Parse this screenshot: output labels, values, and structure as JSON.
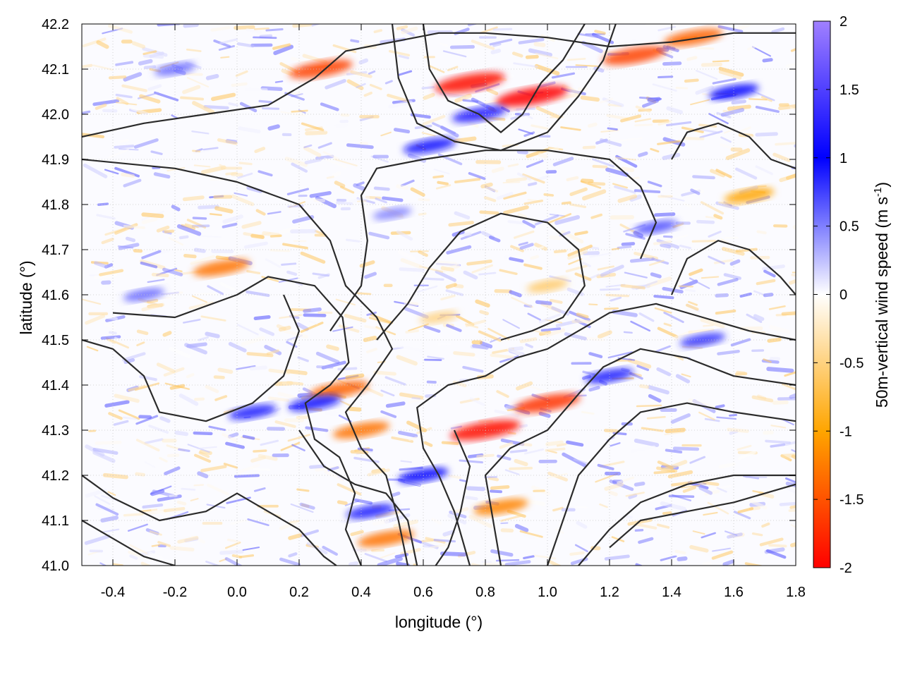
{
  "chart_data": {
    "type": "heatmap",
    "title": "",
    "xlabel": "longitude (°)",
    "ylabel": "latitude (°)",
    "colorbar_label": "50m-vertical wind speed (m s",
    "colorbar_label_sup": "-1",
    "colorbar_label_end": ")",
    "xlim": [
      -0.5,
      1.8
    ],
    "ylim": [
      41.0,
      42.2
    ],
    "clim": [
      -2,
      2
    ],
    "x_ticks": [
      -0.4,
      -0.2,
      0.0,
      0.2,
      0.4,
      0.6,
      0.8,
      1.0,
      1.2,
      1.4,
      1.6,
      1.8
    ],
    "x_tick_labels": [
      "-0.4",
      "-0.2",
      "0.0",
      "0.2",
      "0.4",
      "0.6",
      "0.8",
      "1.0",
      "1.2",
      "1.4",
      "1.6",
      "1.8"
    ],
    "y_ticks": [
      41.0,
      41.1,
      41.2,
      41.3,
      41.4,
      41.5,
      41.6,
      41.7,
      41.8,
      41.9,
      42.0,
      42.1,
      42.2
    ],
    "y_tick_labels": [
      "41.0",
      "41.1",
      "41.2",
      "41.3",
      "41.4",
      "41.5",
      "41.6",
      "41.7",
      "41.8",
      "41.9",
      "42.0",
      "42.1",
      "42.2"
    ],
    "colorbar_ticks": [
      -2,
      -1.5,
      -1,
      -0.5,
      0,
      0.5,
      1,
      1.5,
      2
    ],
    "colorbar_tick_labels": [
      "-2",
      "-1.5",
      "-1",
      "-0.5",
      "0",
      "0.5",
      "1",
      "1.5",
      "2"
    ],
    "colormap": [
      {
        "value": -2,
        "color": "#ff0000"
      },
      {
        "value": -1,
        "color": "#ffa500"
      },
      {
        "value": 0,
        "color": "#ffffff"
      },
      {
        "value": 1,
        "color": "#0000ff"
      },
      {
        "value": 2,
        "color": "#a080ff"
      }
    ],
    "grid": true,
    "contour_color": "#2b2b2b",
    "hotspots": [
      {
        "lon": 0.95,
        "lat": 42.04,
        "value": -2.0
      },
      {
        "lon": 0.75,
        "lat": 42.07,
        "value": -1.9
      },
      {
        "lon": 0.27,
        "lat": 42.1,
        "value": -1.6
      },
      {
        "lon": 1.28,
        "lat": 42.13,
        "value": -1.6
      },
      {
        "lon": 1.47,
        "lat": 42.17,
        "value": -1.4
      },
      {
        "lon": 0.8,
        "lat": 41.3,
        "value": -1.9
      },
      {
        "lon": 1.0,
        "lat": 41.36,
        "value": -1.7
      },
      {
        "lon": 0.33,
        "lat": 41.39,
        "value": -1.4
      },
      {
        "lon": -0.05,
        "lat": 41.66,
        "value": -1.3
      },
      {
        "lon": 0.4,
        "lat": 41.3,
        "value": -1.3
      },
      {
        "lon": 0.48,
        "lat": 41.06,
        "value": -1.3
      },
      {
        "lon": 0.85,
        "lat": 41.13,
        "value": -1.2
      },
      {
        "lon": 1.65,
        "lat": 41.82,
        "value": -1.0
      },
      {
        "lon": 1.0,
        "lat": 41.62,
        "value": -0.6
      },
      {
        "lon": 0.65,
        "lat": 41.55,
        "value": -0.5
      },
      {
        "lon": 0.78,
        "lat": 42.0,
        "value": 1.2
      },
      {
        "lon": 0.62,
        "lat": 41.93,
        "value": 1.1
      },
      {
        "lon": 1.6,
        "lat": 42.05,
        "value": 1.0
      },
      {
        "lon": 0.25,
        "lat": 41.36,
        "value": 1.1
      },
      {
        "lon": 0.05,
        "lat": 41.34,
        "value": 0.9
      },
      {
        "lon": 0.6,
        "lat": 41.2,
        "value": 1.0
      },
      {
        "lon": 0.43,
        "lat": 41.12,
        "value": 0.9
      },
      {
        "lon": 1.2,
        "lat": 41.42,
        "value": 0.9
      },
      {
        "lon": 1.5,
        "lat": 41.5,
        "value": 0.8
      },
      {
        "lon": -0.3,
        "lat": 41.6,
        "value": 0.6
      },
      {
        "lon": 0.5,
        "lat": 41.78,
        "value": 0.5
      },
      {
        "lon": -0.2,
        "lat": 42.1,
        "value": 0.6
      },
      {
        "lon": 1.35,
        "lat": 41.75,
        "value": 0.7
      }
    ],
    "contour_lines": [
      [
        [
          0.4,
          41.0
        ],
        [
          0.35,
          41.08
        ],
        [
          0.38,
          41.16
        ],
        [
          0.33,
          41.24
        ],
        [
          0.25,
          41.28
        ],
        [
          0.22,
          41.36
        ],
        [
          0.3,
          41.4
        ],
        [
          0.36,
          41.45
        ],
        [
          0.34,
          41.55
        ],
        [
          0.25,
          41.62
        ],
        [
          0.1,
          41.64
        ],
        [
          0.0,
          41.6
        ],
        [
          -0.2,
          41.55
        ],
        [
          -0.4,
          41.56
        ]
      ],
      [
        [
          0.55,
          41.0
        ],
        [
          0.52,
          41.1
        ],
        [
          0.48,
          41.2
        ],
        [
          0.4,
          41.26
        ],
        [
          0.35,
          41.34
        ],
        [
          0.42,
          41.4
        ],
        [
          0.5,
          41.48
        ],
        [
          0.45,
          41.55
        ],
        [
          0.35,
          41.62
        ],
        [
          0.3,
          41.72
        ],
        [
          0.2,
          41.8
        ],
        [
          0.0,
          41.85
        ],
        [
          -0.2,
          41.88
        ],
        [
          -0.5,
          41.9
        ]
      ],
      [
        [
          0.75,
          41.0
        ],
        [
          0.7,
          41.12
        ],
        [
          0.65,
          41.2
        ],
        [
          0.6,
          41.26
        ],
        [
          0.58,
          41.35
        ],
        [
          0.68,
          41.4
        ],
        [
          0.8,
          41.42
        ],
        [
          0.9,
          41.46
        ],
        [
          1.0,
          41.48
        ],
        [
          1.1,
          41.52
        ],
        [
          1.2,
          41.56
        ],
        [
          1.35,
          41.58
        ],
        [
          1.5,
          41.55
        ],
        [
          1.65,
          41.52
        ],
        [
          1.8,
          41.5
        ]
      ],
      [
        [
          0.85,
          41.0
        ],
        [
          0.82,
          41.12
        ],
        [
          0.8,
          41.2
        ],
        [
          0.88,
          41.26
        ],
        [
          1.0,
          41.3
        ],
        [
          1.1,
          41.38
        ],
        [
          1.18,
          41.44
        ],
        [
          1.3,
          41.48
        ],
        [
          1.45,
          41.46
        ],
        [
          1.6,
          41.42
        ],
        [
          1.8,
          41.4
        ]
      ],
      [
        [
          1.0,
          41.0
        ],
        [
          1.05,
          41.1
        ],
        [
          1.1,
          41.2
        ],
        [
          1.2,
          41.28
        ],
        [
          1.3,
          41.34
        ],
        [
          1.45,
          41.36
        ],
        [
          1.6,
          41.34
        ],
        [
          1.8,
          41.32
        ]
      ],
      [
        [
          1.1,
          41.0
        ],
        [
          1.2,
          41.08
        ],
        [
          1.3,
          41.14
        ],
        [
          1.45,
          41.18
        ],
        [
          1.6,
          41.2
        ],
        [
          1.8,
          41.2
        ]
      ],
      [
        [
          1.2,
          41.04
        ],
        [
          1.3,
          41.1
        ],
        [
          1.45,
          41.12
        ],
        [
          1.6,
          41.14
        ],
        [
          1.8,
          41.18
        ]
      ],
      [
        [
          0.45,
          41.5
        ],
        [
          0.55,
          41.58
        ],
        [
          0.62,
          41.66
        ],
        [
          0.72,
          41.74
        ],
        [
          0.85,
          41.78
        ],
        [
          1.0,
          41.76
        ],
        [
          1.1,
          41.7
        ],
        [
          1.12,
          41.62
        ],
        [
          1.05,
          41.55
        ],
        [
          0.95,
          41.52
        ],
        [
          0.85,
          41.5
        ]
      ],
      [
        [
          0.3,
          41.52
        ],
        [
          0.4,
          41.62
        ],
        [
          0.42,
          41.72
        ],
        [
          0.4,
          41.82
        ],
        [
          0.45,
          41.88
        ],
        [
          0.6,
          41.9
        ],
        [
          0.8,
          41.92
        ],
        [
          1.0,
          41.92
        ],
        [
          1.2,
          41.9
        ],
        [
          1.3,
          41.84
        ],
        [
          1.35,
          41.76
        ],
        [
          1.3,
          41.68
        ]
      ],
      [
        [
          -0.5,
          41.95
        ],
        [
          -0.3,
          41.98
        ],
        [
          -0.1,
          42.0
        ],
        [
          0.1,
          42.02
        ],
        [
          0.25,
          42.08
        ],
        [
          0.35,
          42.14
        ],
        [
          0.5,
          42.16
        ],
        [
          0.65,
          42.18
        ],
        [
          0.8,
          42.18
        ],
        [
          1.0,
          42.17
        ],
        [
          1.2,
          42.15
        ],
        [
          1.4,
          42.16
        ],
        [
          1.6,
          42.18
        ],
        [
          1.8,
          42.18
        ]
      ],
      [
        [
          0.6,
          42.2
        ],
        [
          0.62,
          42.1
        ],
        [
          0.68,
          42.03
        ],
        [
          0.78,
          42.0
        ],
        [
          0.85,
          41.96
        ],
        [
          0.92,
          42.0
        ],
        [
          0.98,
          42.07
        ],
        [
          1.05,
          42.12
        ],
        [
          1.12,
          42.2
        ]
      ],
      [
        [
          0.5,
          42.2
        ],
        [
          0.52,
          42.08
        ],
        [
          0.58,
          41.98
        ],
        [
          0.7,
          41.94
        ],
        [
          0.85,
          41.92
        ],
        [
          1.0,
          41.96
        ],
        [
          1.1,
          42.04
        ],
        [
          1.18,
          42.12
        ],
        [
          1.22,
          42.2
        ]
      ],
      [
        [
          -0.5,
          41.5
        ],
        [
          -0.4,
          41.48
        ],
        [
          -0.3,
          41.42
        ],
        [
          -0.25,
          41.34
        ],
        [
          -0.1,
          41.32
        ],
        [
          0.05,
          41.36
        ],
        [
          0.15,
          41.42
        ],
        [
          0.2,
          41.52
        ],
        [
          0.15,
          41.6
        ]
      ],
      [
        [
          -0.5,
          41.2
        ],
        [
          -0.4,
          41.15
        ],
        [
          -0.25,
          41.1
        ],
        [
          -0.1,
          41.12
        ],
        [
          0.0,
          41.16
        ],
        [
          0.1,
          41.12
        ],
        [
          0.2,
          41.08
        ],
        [
          0.28,
          41.02
        ],
        [
          0.32,
          41.0
        ]
      ],
      [
        [
          -0.5,
          41.1
        ],
        [
          -0.4,
          41.06
        ],
        [
          -0.3,
          41.02
        ],
        [
          -0.2,
          41.0
        ]
      ],
      [
        [
          1.4,
          41.6
        ],
        [
          1.45,
          41.68
        ],
        [
          1.55,
          41.72
        ],
        [
          1.65,
          41.7
        ],
        [
          1.75,
          41.64
        ],
        [
          1.8,
          41.6
        ]
      ],
      [
        [
          1.4,
          41.9
        ],
        [
          1.45,
          41.96
        ],
        [
          1.55,
          41.98
        ],
        [
          1.65,
          41.95
        ],
        [
          1.72,
          41.9
        ],
        [
          1.8,
          41.88
        ]
      ],
      [
        [
          0.2,
          41.3
        ],
        [
          0.28,
          41.22
        ],
        [
          0.38,
          41.18
        ],
        [
          0.48,
          41.16
        ],
        [
          0.55,
          41.1
        ],
        [
          0.58,
          41.0
        ]
      ],
      [
        [
          0.7,
          41.3
        ],
        [
          0.75,
          41.22
        ],
        [
          0.72,
          41.12
        ],
        [
          0.68,
          41.04
        ],
        [
          0.64,
          41.0
        ]
      ]
    ]
  }
}
